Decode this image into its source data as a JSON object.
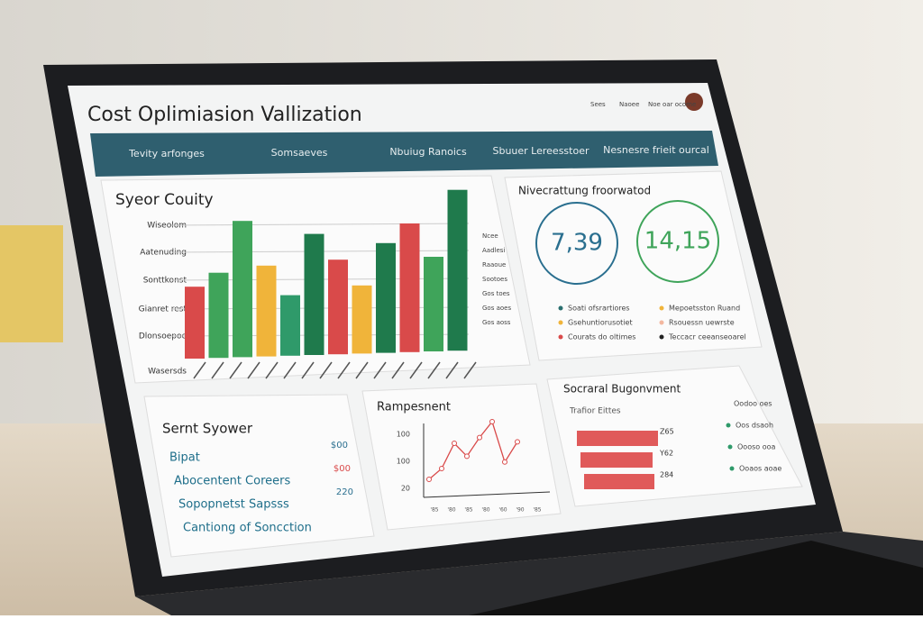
{
  "header": {
    "title": "Cost Oplimiasion Vallization",
    "links": [
      "Sees",
      "Naoee",
      "Noe oar ocome"
    ]
  },
  "nav": {
    "tabs": [
      "Tevity arfonges",
      "Somsaeves",
      "Nbuiug Ranoics",
      "Sbuuer Lereesstoer",
      "Nesnesre frieit ourcal"
    ]
  },
  "bar_panel": {
    "title": "Syeor Couity",
    "row_labels": [
      "Wiseolom",
      "Aatenuding",
      "Sonttkonst",
      "Gianret rest",
      "Dlonsoepoe",
      "Wasersds"
    ],
    "values": [
      38,
      45,
      72,
      48,
      32,
      64,
      50,
      36,
      58,
      68,
      50,
      85
    ],
    "colors": [
      "#d94a4a",
      "#3fa45a",
      "#3fa45a",
      "#f0b43a",
      "#2f9a6a",
      "#1f7a4c",
      "#d94a4a",
      "#f0b43a",
      "#1f7a4c",
      "#d94a4a",
      "#3fa45a",
      "#1f7a4c"
    ],
    "right_labels": [
      "Ncee",
      "Aadlesi",
      "Raaoue",
      "Sootoes",
      "Gos toes",
      "Gos aoes",
      "Gos aoss"
    ]
  },
  "kpi_panel": {
    "title": "Nivecrattung froorwatod",
    "kpis": [
      {
        "value": "7,39",
        "color": "#2a6f8f"
      },
      {
        "value": "14,15",
        "color": "#3fa45a"
      }
    ],
    "legend": [
      {
        "label": "Soati ofsrartiores",
        "color": "#2a6f6f"
      },
      {
        "label": "Gsehuntiorusotiet",
        "color": "#f0b43a"
      },
      {
        "label": "Courats do oltimes",
        "color": "#d94a4a"
      },
      {
        "label": "Mepoetsston Ruand",
        "color": "#f0b43a"
      },
      {
        "label": "Rsouessn uewrste",
        "color": "#f3b8a0"
      },
      {
        "label": "Teccacr ceeanseoarel",
        "color": "#222222"
      }
    ]
  },
  "summary_panel": {
    "title": "Sernt Syower",
    "rows": [
      {
        "label": "Bipat",
        "value": "$00"
      },
      {
        "label": "Abocentent Coreers",
        "value": "$00"
      },
      {
        "label": "Sopopnetst Sapsss",
        "value": "220"
      },
      {
        "label": "Cantiong of Soncction"
      }
    ]
  },
  "line_panel": {
    "title": "Rampesnent",
    "tick_labels": [
      "100",
      "100",
      "20"
    ],
    "x_labels": [
      "'85",
      "'80",
      "'85",
      "'80",
      "'60",
      "'90",
      "'85"
    ],
    "values": [
      10,
      25,
      60,
      42,
      68,
      90,
      34,
      62
    ],
    "color": "#d94a4a"
  },
  "hbar_panel": {
    "title": "Socraral Bugonvment",
    "subtitle": "Trafior Eittes",
    "bars": [
      {
        "label": "Z65",
        "value": 90
      },
      {
        "label": "Y62",
        "value": 80
      },
      {
        "label": "284",
        "value": 78
      }
    ],
    "color": "#e05a5a",
    "legend": [
      "Oodoo oes",
      "Oos dsaoh",
      "Oooso ooa",
      "Ooaos aoae"
    ]
  }
}
